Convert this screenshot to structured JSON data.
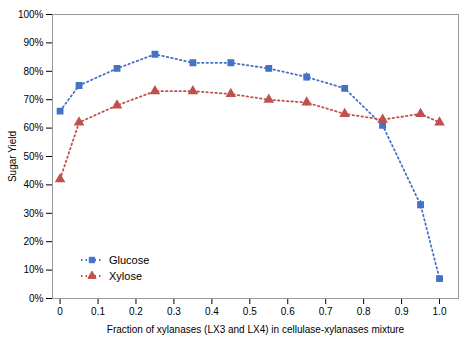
{
  "chart_data": {
    "type": "line",
    "xlabel": "Fraction of xylanases (LX3 and LX4) in cellulase-xylanases mixture",
    "ylabel": "Sugar Yield",
    "x": [
      0,
      0.05,
      0.15,
      0.25,
      0.35,
      0.45,
      0.55,
      0.65,
      0.75,
      0.85,
      0.95,
      1.0
    ],
    "series": [
      {
        "name": "Glucose",
        "color": "#4472C4",
        "marker": "square",
        "line_style": "dotted",
        "values": [
          0.66,
          0.75,
          0.81,
          0.86,
          0.83,
          0.83,
          0.81,
          0.78,
          0.74,
          0.61,
          0.33,
          0.07
        ],
        "errors": [
          0.005,
          0.008,
          0.008,
          0.01,
          0.005,
          0.005,
          0.005,
          0.015,
          0.005,
          0.005,
          0.015,
          0.005
        ]
      },
      {
        "name": "Xylose",
        "color": "#C0504D",
        "marker": "triangle",
        "line_style": "dotted",
        "values": [
          0.42,
          0.62,
          0.68,
          0.73,
          0.73,
          0.72,
          0.7,
          0.69,
          0.65,
          0.63,
          0.65,
          0.62
        ],
        "errors": [
          0.005,
          0.005,
          0.005,
          0.012,
          0.012,
          0.008,
          0.008,
          0.012,
          0.012,
          0.008,
          0.008,
          0.008
        ]
      }
    ],
    "xlim": [
      -0.02,
      1.05
    ],
    "xticks": [
      0,
      0.1,
      0.2,
      0.3,
      0.4,
      0.5,
      0.6,
      0.7,
      0.8,
      0.9,
      {
        "value": 1.0,
        "label": "1.0"
      }
    ],
    "ylim": [
      0,
      1.0
    ],
    "yticks": [
      {
        "value": 0.0,
        "label": "0%"
      },
      {
        "value": 0.1,
        "label": "10%"
      },
      {
        "value": 0.2,
        "label": "20%"
      },
      {
        "value": 0.3,
        "label": "30%"
      },
      {
        "value": 0.4,
        "label": "40%"
      },
      {
        "value": 0.5,
        "label": "50%"
      },
      {
        "value": 0.6,
        "label": "60%"
      },
      {
        "value": 0.7,
        "label": "70%"
      },
      {
        "value": 0.8,
        "label": "80%"
      },
      {
        "value": 0.9,
        "label": "90%"
      },
      {
        "value": 1.0,
        "label": "100%"
      }
    ],
    "grid": false,
    "legend": "lower left"
  }
}
